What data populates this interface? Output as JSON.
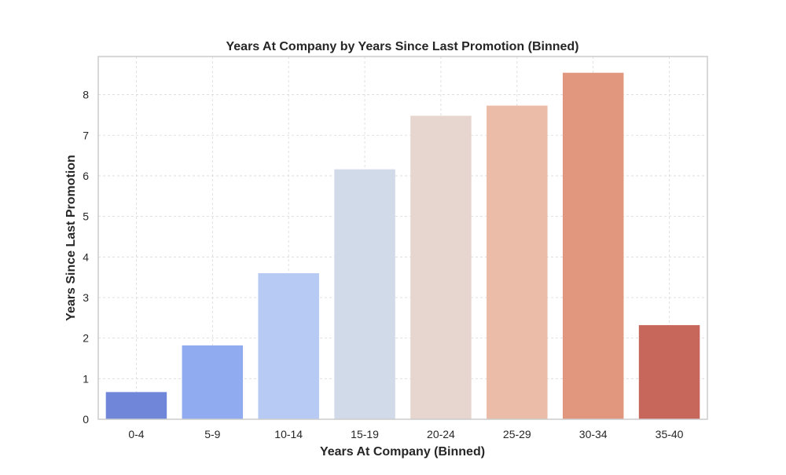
{
  "chart_data": {
    "type": "bar",
    "title": "Years At Company by Years Since Last Promotion (Binned)",
    "xlabel": "Years At Company (Binned)",
    "ylabel": "Years Since Last Promotion",
    "categories": [
      "0-4",
      "5-9",
      "10-14",
      "15-19",
      "20-24",
      "25-29",
      "30-34",
      "35-40"
    ],
    "values": [
      0.67,
      1.82,
      3.6,
      6.16,
      7.48,
      7.73,
      8.54,
      2.32
    ],
    "colors": [
      "#6f86d9",
      "#90abef",
      "#b6caf3",
      "#d1dae8",
      "#e6d6cf",
      "#ebbca7",
      "#e1967e",
      "#c7665b"
    ],
    "ylim": [
      0,
      8.94
    ],
    "yticks": [
      0,
      1,
      2,
      3,
      4,
      5,
      6,
      7,
      8
    ],
    "grid": true
  }
}
